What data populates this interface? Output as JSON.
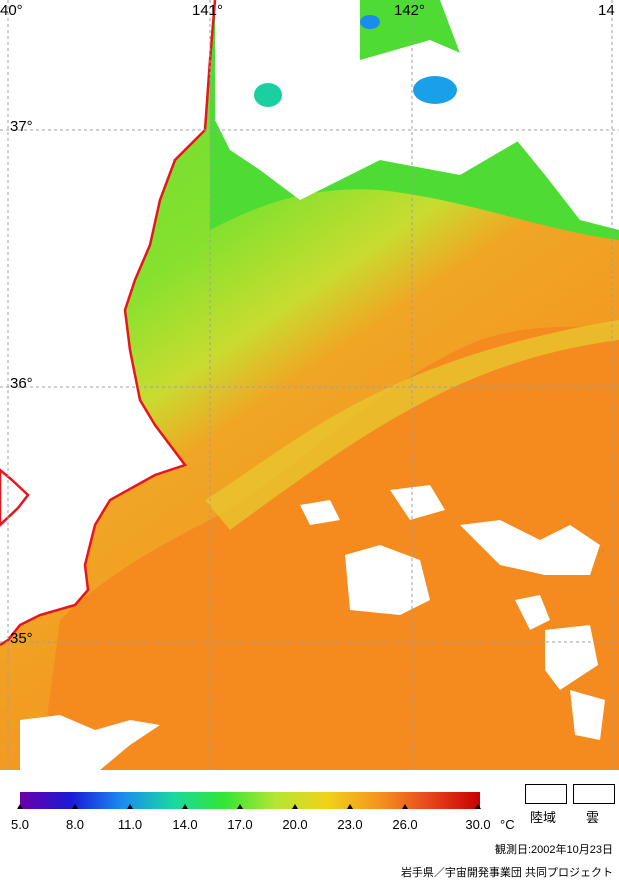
{
  "map": {
    "lat_labels": [
      "37°",
      "36°",
      "35°"
    ],
    "lon_labels": [
      "40°",
      "141°",
      "142°",
      "14"
    ],
    "colors": {
      "ocean_warm": "#f58a1e",
      "ocean_mid": "#9ee82a",
      "ocean_cool": "#44dd33",
      "land": "#ffffff",
      "coastline": "#e8141e",
      "grid": "#a0a0a0"
    }
  },
  "legend": {
    "ticks": [
      "5.0",
      "8.0",
      "11.0",
      "14.0",
      "17.0",
      "20.0",
      "23.0",
      "26.0",
      "30.0"
    ],
    "unit": "°C",
    "land_label": "陸域",
    "cloud_label": "雲",
    "gradient": [
      "#6a00a8",
      "#1a1ad8",
      "#1a8cf0",
      "#1ad8a0",
      "#33e633",
      "#b4e633",
      "#f0d21a",
      "#f5961e",
      "#e8461e",
      "#c80000"
    ]
  },
  "footer": {
    "observation_date": "観測日:2002年10月23日",
    "credit": "岩手県／宇宙開発事業団 共同プロジェクト"
  }
}
